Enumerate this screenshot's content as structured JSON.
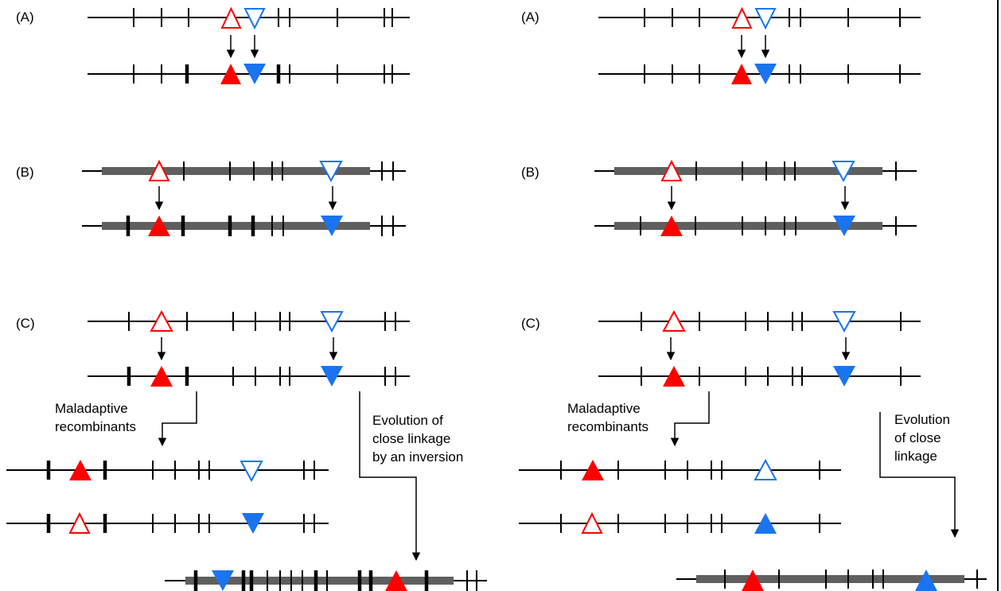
{
  "left": {
    "panel_a": "(A)",
    "panel_b": "(B)",
    "panel_c": "(C)",
    "recombinants_line1": "Maladaptive",
    "recombinants_line2": "recombinants",
    "evolution_line1": "Evolution of",
    "evolution_line2": "close linkage",
    "evolution_line3": "by an inversion"
  },
  "right": {
    "panel_a": "(A)",
    "panel_b": "(B)",
    "panel_c": "(C)",
    "recombinants_line1": "Maladaptive",
    "recombinants_line2": "recombinants",
    "evolution_line1": "Evolution",
    "evolution_line2": "of close",
    "evolution_line3": "linkage"
  },
  "colors": {
    "red": "#ff0000",
    "blue": "#1a74f0",
    "gray_block": "#5f5f5f",
    "line": "#000000"
  }
}
